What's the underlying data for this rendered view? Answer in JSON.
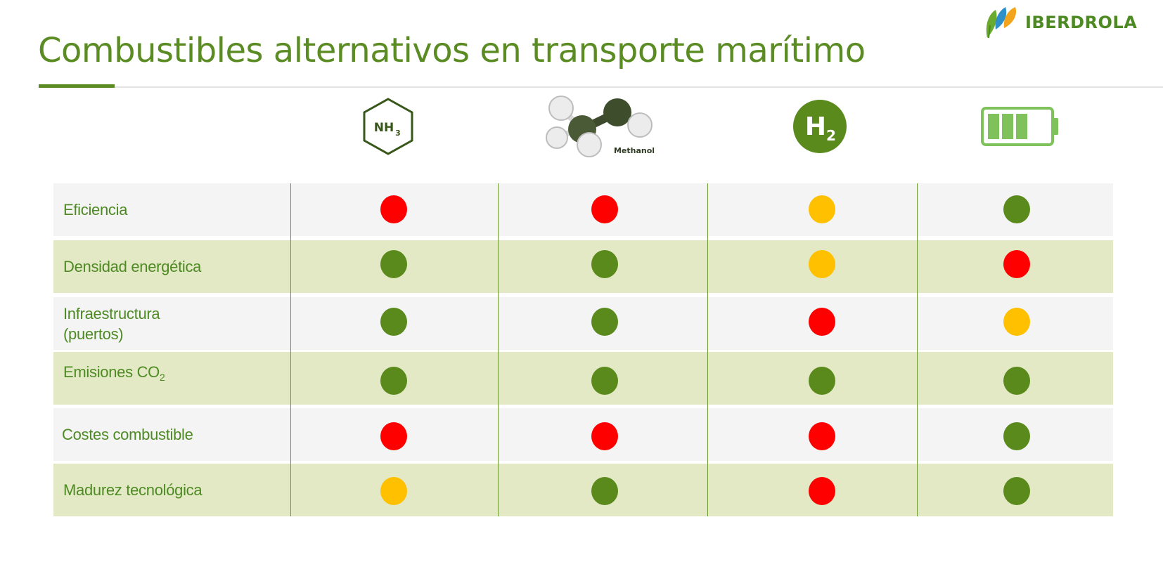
{
  "brand": {
    "logo_text": "IBERDROLA"
  },
  "page": {
    "title": "Combustibles alternativos en transporte marítimo"
  },
  "status_colors": {
    "rojo": "#ff0000",
    "amarillo": "#ffc000",
    "verde": "#5a8a1c"
  },
  "columns": [
    {
      "icon": "ammonia-icon",
      "icon_text": "NH",
      "icon_sub": "3"
    },
    {
      "icon": "methanol-molecule-icon",
      "icon_text": "Methanol"
    },
    {
      "icon": "hydrogen-icon",
      "icon_text": "H",
      "icon_sub": "2"
    },
    {
      "icon": "battery-icon"
    }
  ],
  "rows": [
    {
      "label": "Eficiencia",
      "ratings": [
        "rojo",
        "rojo",
        "amarillo",
        "verde"
      ]
    },
    {
      "label": "Densidad energética",
      "ratings": [
        "verde",
        "verde",
        "amarillo",
        "rojo"
      ]
    },
    {
      "label_line1": "Infraestructura",
      "label_line2": "(puertos)",
      "ratings": [
        "verde",
        "verde",
        "rojo",
        "amarillo"
      ]
    },
    {
      "label_main": "Emisiones CO",
      "label_sub": "2",
      "ratings": [
        "verde",
        "verde",
        "verde",
        "verde"
      ]
    },
    {
      "label": "Costes combustible",
      "ratings": [
        "rojo",
        "rojo",
        "rojo",
        "verde"
      ]
    },
    {
      "label": "Madurez tecnológica",
      "ratings": [
        "amarillo",
        "verde",
        "rojo",
        "verde"
      ]
    }
  ]
}
